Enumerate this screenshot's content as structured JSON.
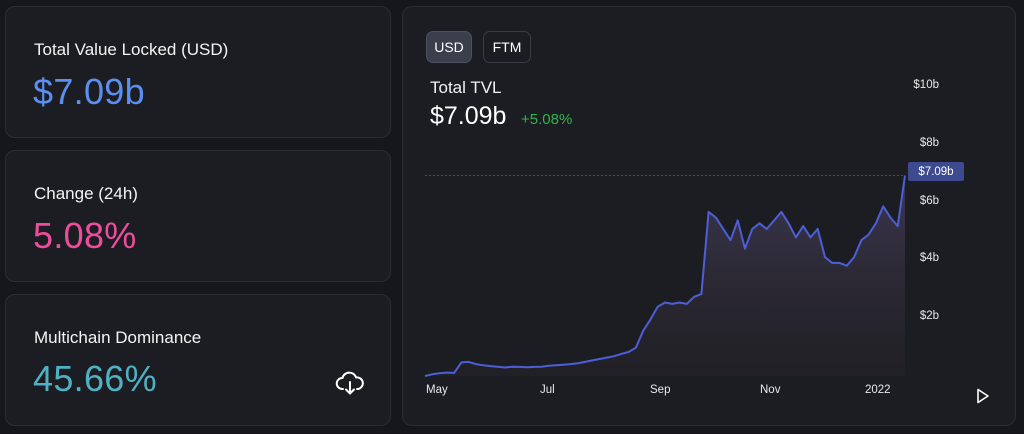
{
  "stats": {
    "tvl": {
      "label": "Total Value Locked (USD)",
      "value": "$7.09b",
      "color": "#5b8ff0"
    },
    "change": {
      "label": "Change (24h)",
      "value": "5.08%",
      "color": "#ee4d9c"
    },
    "dominance": {
      "label": "Multichain Dominance",
      "value": "45.66%",
      "color": "#4fb1c4"
    }
  },
  "chart_panel": {
    "toggles": [
      {
        "label": "USD",
        "active": true
      },
      {
        "label": "FTM",
        "active": false
      }
    ],
    "title": "Total TVL",
    "value": "$7.09b",
    "change": "+5.08%",
    "change_color": "#2fb64a",
    "current_label": "$7.09b",
    "y_ticks": [
      "$10b",
      "$8b",
      "$6b",
      "$4b",
      "$2b"
    ],
    "x_ticks": [
      "May",
      "Jul",
      "Sep",
      "Nov",
      "2022"
    ],
    "icons": {
      "download": "download-cloud-icon",
      "play": "play-icon"
    }
  },
  "chart_data": {
    "type": "area",
    "title": "Total TVL",
    "xlabel": "",
    "ylabel": "",
    "ylim": [
      0,
      10.5
    ],
    "y_unit": "$b",
    "x_ticks": [
      "May",
      "Jul",
      "Sep",
      "Nov",
      "2022"
    ],
    "grid": false,
    "line_color": "#4d5fd6",
    "series": [
      {
        "values": [
          0.0,
          0.06,
          0.1,
          0.12,
          0.11,
          0.48,
          0.5,
          0.42,
          0.38,
          0.35,
          0.33,
          0.3,
          0.33,
          0.32,
          0.31,
          0.32,
          0.33,
          0.36,
          0.38,
          0.4,
          0.42,
          0.45,
          0.5,
          0.55,
          0.6,
          0.65,
          0.7,
          0.78,
          0.85,
          1.0,
          1.6,
          2.0,
          2.45,
          2.6,
          2.55,
          2.6,
          2.55,
          2.8,
          2.9,
          5.8,
          5.6,
          5.2,
          4.8,
          5.5,
          4.5,
          5.2,
          5.4,
          5.2,
          5.5,
          5.8,
          5.4,
          4.9,
          5.3,
          4.9,
          5.2,
          4.2,
          4.0,
          4.0,
          3.9,
          4.2,
          4.8,
          5.0,
          5.4,
          6.0,
          5.6,
          5.3,
          7.09
        ]
      }
    ]
  }
}
